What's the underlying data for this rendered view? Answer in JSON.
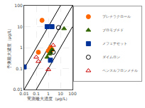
{
  "chart_data": {
    "type": "scatter",
    "xlabel": "実測最大濃度（μg/L）",
    "ylabel": "予測最大濃度（μg/L）",
    "log": true,
    "grid": true,
    "legend": "right",
    "xlim": [
      0.01,
      100
    ],
    "ylim": [
      0.01,
      100
    ],
    "xticks": [
      0.01,
      0.1,
      1,
      10,
      100
    ],
    "yticks": [
      0.01,
      0.1,
      1,
      10,
      100
    ],
    "lines": [
      {
        "color": "#000000",
        "line_style": "solid",
        "x": [
          0.01,
          100
        ],
        "values": [
          0.01,
          100
        ]
      },
      {
        "color": "#000000",
        "line_style": "solid",
        "x": [
          0.01,
          100
        ],
        "values": [
          0.1,
          1000
        ]
      },
      {
        "color": "#000000",
        "line_style": "solid",
        "x": [
          0.01,
          100
        ],
        "values": [
          0.001,
          10
        ]
      }
    ],
    "series": [
      {
        "name": "プレチラクロール",
        "marker": "circle",
        "color": "#FF6600",
        "x": [
          0.3,
          0.15,
          1.0,
          1.5,
          2.0
        ],
        "values": [
          20,
          0.6,
          0.7,
          1.0,
          0.8
        ]
      },
      {
        "name": "ブロモブチド",
        "marker": "triangle-up",
        "color": "#336600",
        "x": [
          0.8,
          1.2,
          1.5,
          2.0,
          20
        ],
        "values": [
          0.35,
          0.5,
          0.6,
          0.8,
          8
        ]
      },
      {
        "name": "メフェナセット",
        "marker": "square",
        "color": "#003399",
        "x": [
          0.01,
          0.8,
          1.5,
          2.0
        ],
        "values": [
          0.12,
          10,
          0.25,
          10
        ]
      },
      {
        "name": "ダイムロン",
        "marker": "circle-open",
        "color": "#000000",
        "x": [
          7,
          2.5
        ],
        "values": [
          9,
          0.6
        ]
      },
      {
        "name": "ベンスルフロンメチル",
        "marker": "triangle-up-open",
        "color": "#CC0000",
        "x": [
          0.1,
          0.15,
          1.0,
          2.5
        ],
        "values": [
          0.35,
          0.22,
          0.09,
          1.3
        ]
      }
    ]
  }
}
